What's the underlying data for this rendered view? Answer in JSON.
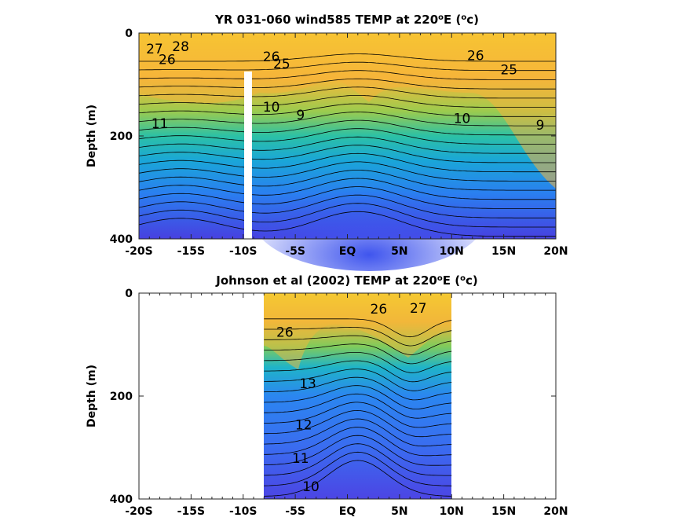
{
  "chart_data": [
    {
      "type": "heatmap",
      "subtype": "filled-contour depth section",
      "title": "YR 031-060 wind585 TEMP at 220",
      "title_sup1": "o",
      "title_mid": "E (",
      "title_sup2": "o",
      "title_end": "c)",
      "ylabel": "Depth (m)",
      "xlim": [
        -20,
        20
      ],
      "ylim": [
        0,
        400
      ],
      "y_reversed": true,
      "x_ticks": [
        -20,
        -15,
        -10,
        -5,
        0,
        5,
        10,
        15,
        20
      ],
      "x_tick_labels": [
        "-20S",
        "-15S",
        "-10S",
        "-5S",
        "EQ",
        "5N",
        "10N",
        "15N",
        "20N"
      ],
      "y_ticks": [
        0,
        200,
        400
      ],
      "y_tick_labels": [
        "0",
        "200",
        "400"
      ],
      "data_extent": [
        -20,
        20
      ],
      "gap": [
        -10.3,
        -9.6
      ],
      "colormap": [
        "#3e26a8",
        "#4a4ef2",
        "#2c86f0",
        "#1aabd5",
        "#2fc3a0",
        "#8ecc5a",
        "#e0bc3d",
        "#fbd22c",
        "#f7f01c"
      ],
      "contour_levels": [
        9,
        10,
        11,
        12,
        13,
        14,
        15,
        16,
        17,
        18,
        19,
        20,
        21,
        22,
        23,
        24,
        25,
        26,
        27,
        28
      ],
      "contour_labels": [
        {
          "text": "28",
          "x": -16.0,
          "y": 35
        },
        {
          "text": "27",
          "x": -18.5,
          "y": 40
        },
        {
          "text": "26",
          "x": -17.3,
          "y": 60
        },
        {
          "text": "26",
          "x": -7.3,
          "y": 55
        },
        {
          "text": "26",
          "x": 12.3,
          "y": 53
        },
        {
          "text": "25",
          "x": -6.3,
          "y": 69
        },
        {
          "text": "25",
          "x": 15.5,
          "y": 80
        },
        {
          "text": "10",
          "x": -7.3,
          "y": 153
        },
        {
          "text": "9",
          "x": -4.5,
          "y": 168
        },
        {
          "text": "11",
          "x": -18.0,
          "y": 185
        },
        {
          "text": "10",
          "x": 11.0,
          "y": 175
        },
        {
          "text": "9",
          "x": 18.5,
          "y": 188
        }
      ]
    },
    {
      "type": "heatmap",
      "subtype": "filled-contour depth section",
      "title": "Johnson et al (2002) TEMP at 220",
      "title_sup1": "o",
      "title_mid": "E (",
      "title_sup2": "o",
      "title_end": "c)",
      "ylabel": "Depth (m)",
      "xlim": [
        -20,
        20
      ],
      "ylim": [
        0,
        400
      ],
      "y_reversed": true,
      "x_ticks": [
        -20,
        -15,
        -10,
        -5,
        0,
        5,
        10,
        15,
        20
      ],
      "x_tick_labels": [
        "-20S",
        "-15S",
        "-10S",
        "-5S",
        "EQ",
        "5N",
        "10N",
        "15N",
        "20N"
      ],
      "y_ticks": [
        0,
        200,
        400
      ],
      "y_tick_labels": [
        "0",
        "200",
        "400"
      ],
      "data_extent": [
        -8,
        10
      ],
      "colormap": [
        "#3e26a8",
        "#4a4ef2",
        "#2c86f0",
        "#1aabd5",
        "#2fc3a0",
        "#8ecc5a",
        "#e0bc3d",
        "#fbd22c",
        "#f7f01c"
      ],
      "contour_levels": [
        10,
        11,
        12,
        13,
        14,
        15,
        16,
        17,
        18,
        19,
        20,
        21,
        22,
        23,
        24,
        25,
        26,
        27
      ],
      "contour_labels": [
        {
          "text": "26",
          "x": -6.0,
          "y": 85
        },
        {
          "text": "27",
          "x": 6.8,
          "y": 38
        },
        {
          "text": "26",
          "x": 3.0,
          "y": 40
        },
        {
          "text": "13",
          "x": -3.8,
          "y": 185
        },
        {
          "text": "12",
          "x": -4.2,
          "y": 265
        },
        {
          "text": "11",
          "x": -4.5,
          "y": 330
        },
        {
          "text": "10",
          "x": -3.5,
          "y": 385
        }
      ]
    }
  ]
}
